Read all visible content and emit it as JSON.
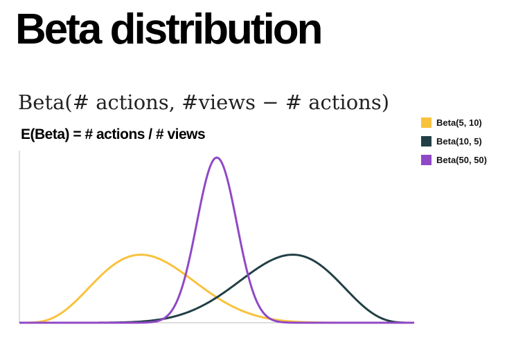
{
  "title": "Beta distribution",
  "formula": "Beta(# actions, #views − # actions)",
  "expectation": "E(Beta) = # actions / # views",
  "legend": {
    "items": [
      {
        "label": "Beta(5, 10)",
        "color": "#F9C23C"
      },
      {
        "label": "Beta(10, 5)",
        "color": "#213F45"
      },
      {
        "label": "Beta(50, 50)",
        "color": "#9048C6"
      }
    ]
  },
  "chart_data": {
    "type": "line",
    "x_range": [
      0,
      1
    ],
    "grid": false,
    "legend_position": "top-right",
    "axis_labels_shown": false,
    "series": [
      {
        "name": "Beta(5, 10)",
        "alpha": 5,
        "beta": 10,
        "color": "#F9C23C"
      },
      {
        "name": "Beta(10, 5)",
        "alpha": 10,
        "beta": 5,
        "color": "#213F45"
      },
      {
        "name": "Beta(50, 50)",
        "alpha": 50,
        "beta": 50,
        "color": "#9048C6"
      }
    ]
  }
}
